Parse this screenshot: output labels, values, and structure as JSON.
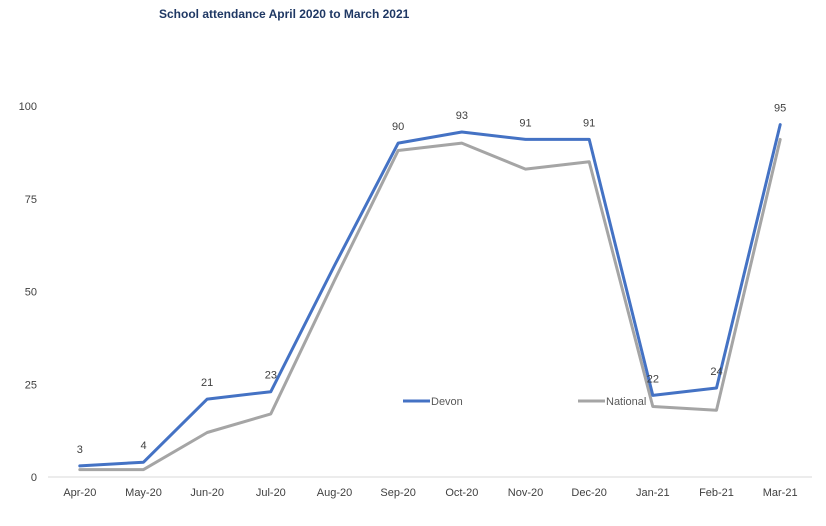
{
  "chart_data": {
    "type": "line",
    "title": "School attendance April 2020 to March 2021",
    "xlabel": "",
    "ylabel": "",
    "categories": [
      "Apr-20",
      "May-20",
      "Jun-20",
      "Jul-20",
      "Aug-20",
      "Sep-20",
      "Oct-20",
      "Nov-20",
      "Dec-20",
      "Jan-21",
      "Feb-21",
      "Mar-21"
    ],
    "ylim": [
      0,
      100
    ],
    "yticks": [
      0,
      25,
      50,
      75,
      100
    ],
    "grid": false,
    "legend_position": "inside-bottom-right",
    "series": [
      {
        "name": "Devon",
        "color": "#4472c4",
        "values": [
          3,
          4,
          21,
          23,
          57,
          90,
          93,
          91,
          91,
          22,
          24,
          95
        ],
        "data_labels": [
          "3",
          "4",
          "21",
          "23",
          "",
          "90",
          "93",
          "91",
          "91",
          "22",
          "24",
          "95"
        ]
      },
      {
        "name": "National",
        "color": "#a5a5a5",
        "values": [
          2,
          2,
          12,
          17,
          53,
          88,
          90,
          83,
          85,
          19,
          18,
          91
        ],
        "data_labels": []
      }
    ]
  }
}
